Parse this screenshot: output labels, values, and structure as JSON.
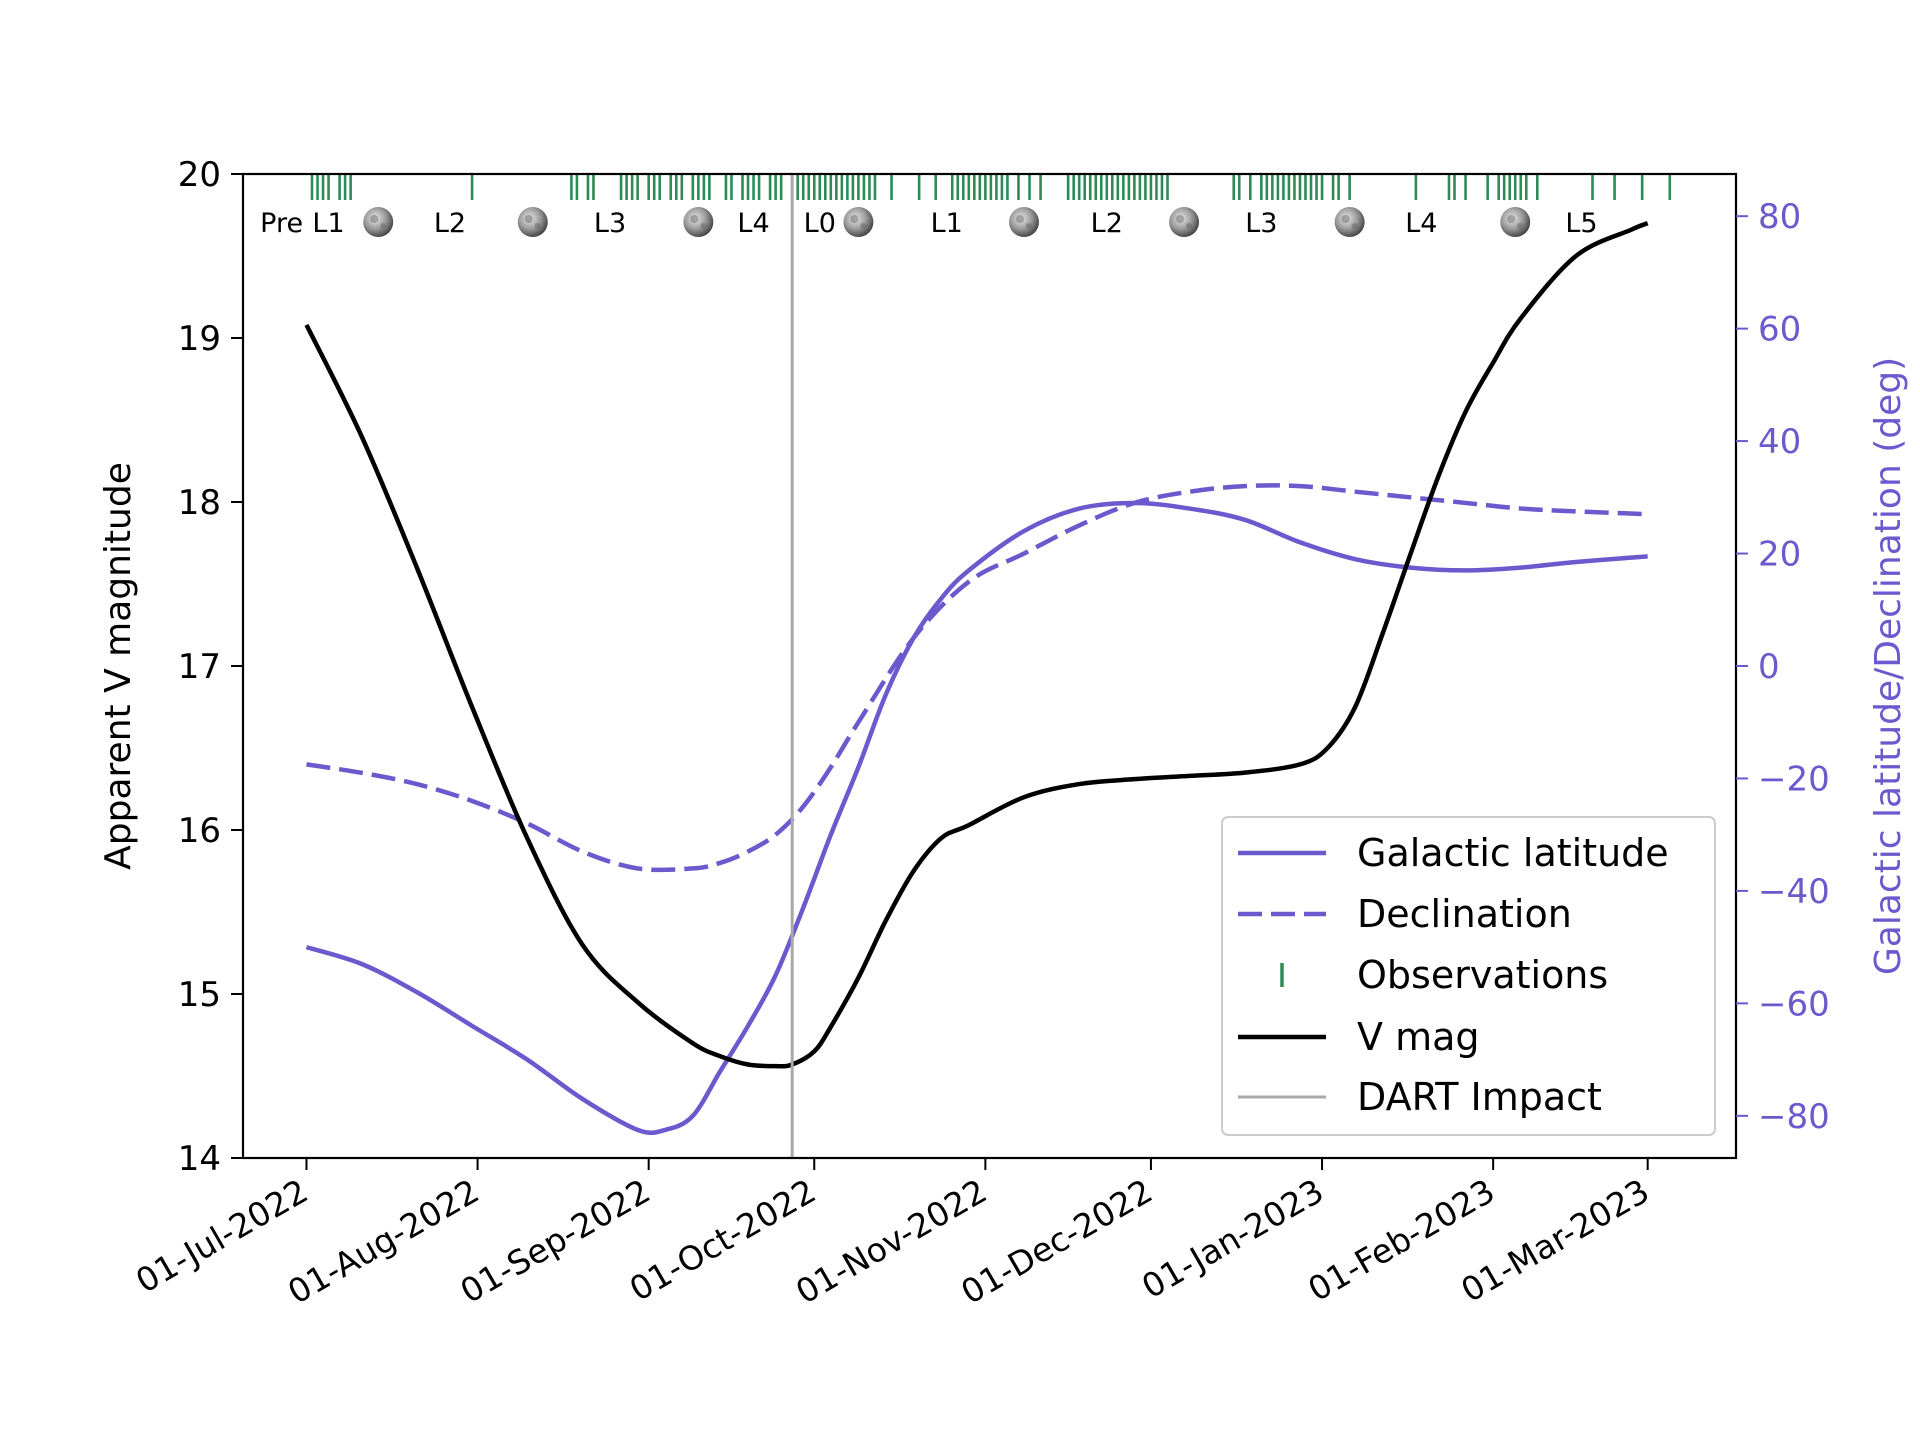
{
  "chart_data": {
    "type": "line",
    "colors": {
      "vmag": "#000000",
      "purple": "#6a5acd",
      "observations": "#2e8b57",
      "dart": "#a9a9a9",
      "axis": "#000000"
    },
    "left_axis": {
      "label": "Apparent V magnitude",
      "range": [
        14,
        20
      ],
      "ticks": [
        "14",
        "15",
        "16",
        "17",
        "18",
        "19",
        "20"
      ]
    },
    "right_axis": {
      "label": "Galactic latitude/Declination (deg)",
      "range": [
        -87.5,
        87.5
      ],
      "ticks": [
        "−80",
        "−60",
        "−40",
        "−20",
        "0",
        "20",
        "40",
        "60",
        "80"
      ],
      "tick_values": [
        -80,
        -60,
        -40,
        -20,
        0,
        20,
        40,
        60,
        80
      ]
    },
    "x_axis": {
      "range_days": [
        -11.5,
        259
      ],
      "tick_labels": [
        "01-Jul-2022",
        "01-Aug-2022",
        "01-Sep-2022",
        "01-Oct-2022",
        "01-Nov-2022",
        "01-Dec-2022",
        "01-Jan-2023",
        "01-Feb-2023",
        "01-Mar-2023"
      ],
      "tick_days": [
        0,
        31,
        62,
        92,
        123,
        153,
        184,
        215,
        243
      ]
    },
    "dart_impact_day": 88,
    "series": [
      {
        "name": "V mag",
        "axis": "left",
        "style": "solid",
        "x": [
          0,
          10,
          20,
          30,
          40,
          50,
          60,
          70,
          75,
          80,
          85,
          88,
          92,
          95,
          100,
          105,
          110,
          115,
          120,
          130,
          140,
          150,
          160,
          170,
          180,
          185,
          190,
          195,
          200,
          205,
          210,
          215,
          220,
          230,
          240,
          243
        ],
        "y": [
          19.08,
          18.4,
          17.6,
          16.75,
          15.95,
          15.3,
          14.95,
          14.7,
          14.62,
          14.57,
          14.56,
          14.57,
          14.65,
          14.8,
          15.1,
          15.45,
          15.75,
          15.95,
          16.03,
          16.2,
          16.28,
          16.31,
          16.33,
          16.35,
          16.4,
          16.5,
          16.75,
          17.2,
          17.68,
          18.15,
          18.55,
          18.85,
          19.12,
          19.5,
          19.66,
          19.7
        ]
      },
      {
        "name": "Galactic latitude",
        "axis": "right",
        "style": "solid",
        "x": [
          0,
          10,
          20,
          30,
          40,
          50,
          60,
          65,
          70,
          75,
          80,
          85,
          90,
          95,
          100,
          105,
          110,
          115,
          120,
          130,
          140,
          150,
          160,
          170,
          180,
          190,
          200,
          210,
          220,
          230,
          243
        ],
        "y": [
          -50,
          -53,
          -58,
          -64,
          -70,
          -77,
          -82.5,
          -82.5,
          -80,
          -72,
          -64,
          -55,
          -43,
          -30,
          -18,
          -5,
          5,
          12,
          17,
          24,
          28,
          29,
          28,
          26,
          22,
          19,
          17.5,
          17,
          17.5,
          18.5,
          19.5
        ]
      },
      {
        "name": "Declination",
        "axis": "right",
        "style": "dashed",
        "x": [
          0,
          10,
          20,
          30,
          40,
          50,
          60,
          70,
          75,
          80,
          85,
          90,
          95,
          100,
          110,
          120,
          130,
          140,
          150,
          160,
          170,
          180,
          190,
          200,
          210,
          220,
          230,
          243
        ],
        "y": [
          -17.5,
          -19,
          -21,
          -24,
          -28,
          -33,
          -36,
          -36,
          -35,
          -33,
          -30,
          -25,
          -18,
          -10,
          5,
          15,
          20,
          25,
          29,
          31,
          32,
          32,
          31,
          30,
          29,
          28,
          27.5,
          27
        ]
      }
    ],
    "observations_days": [
      1,
      2,
      3,
      4,
      6,
      7,
      8,
      30,
      48,
      49,
      51,
      52,
      57,
      58,
      59,
      60,
      62,
      63,
      64,
      66,
      67,
      68,
      70,
      71,
      72,
      73,
      76,
      77,
      79,
      80,
      81,
      82,
      84,
      85,
      86,
      88,
      89,
      90,
      91,
      92,
      93,
      94,
      95,
      96,
      97,
      98,
      99,
      100,
      101,
      102,
      103,
      106,
      111,
      114,
      117,
      118,
      119,
      120,
      121,
      122,
      123,
      124,
      125,
      126,
      127,
      129,
      131,
      133,
      138,
      139,
      140,
      141,
      142,
      143,
      144,
      145,
      146,
      147,
      148,
      149,
      150,
      151,
      152,
      153,
      154,
      155,
      156,
      168,
      169,
      171,
      173,
      174,
      175,
      176,
      177,
      178,
      179,
      180,
      181,
      182,
      183,
      184,
      186,
      187,
      189,
      201,
      207,
      208,
      210,
      214,
      216,
      217,
      218,
      219,
      220,
      221,
      223,
      233,
      237,
      242,
      247
    ],
    "lunation_labels": [
      {
        "text": "Pre",
        "day": -4.5
      },
      {
        "text": "L1",
        "day": 4
      },
      {
        "text": "L2",
        "day": 26
      },
      {
        "text": "L3",
        "day": 55
      },
      {
        "text": "L4",
        "day": 81
      },
      {
        "text": "L0",
        "day": 93
      },
      {
        "text": "L1",
        "day": 116
      },
      {
        "text": "L2",
        "day": 145
      },
      {
        "text": "L3",
        "day": 173
      },
      {
        "text": "L4",
        "day": 202
      },
      {
        "text": "L5",
        "day": 231
      }
    ],
    "full_moon_days": [
      13,
      41,
      71,
      100,
      130,
      159,
      189,
      219
    ],
    "legend": {
      "placement": "lower-right",
      "entries": [
        {
          "label": "Galactic latitude",
          "style": "solid",
          "color": "#6a5acd"
        },
        {
          "label": "Declination",
          "style": "dashed",
          "color": "#6a5acd"
        },
        {
          "label": "Observations",
          "style": "tick",
          "color": "#2e8b57"
        },
        {
          "label": "V mag",
          "style": "solid",
          "color": "#000000"
        },
        {
          "label": "DART Impact",
          "style": "solid",
          "color": "#a9a9a9"
        }
      ]
    }
  }
}
